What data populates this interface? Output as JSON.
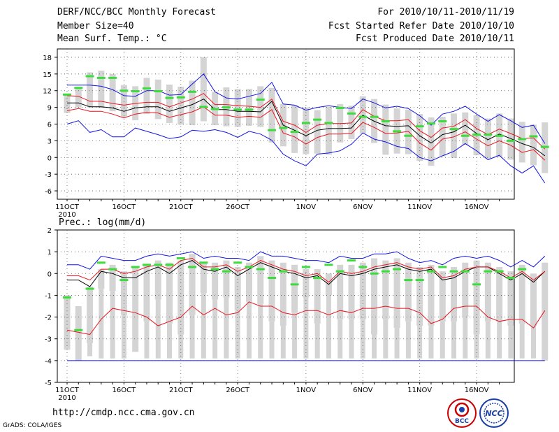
{
  "header": {
    "title": "DERF/NCC/BCC Monthly Forecast",
    "member_size": "Member Size=40",
    "variable": "Mean Surf. Temp.: °C",
    "period": "For 2010/10/11-2010/11/19",
    "fcst_started": "Fcst Started Refer Date 2010/10/10",
    "fcst_produced": "Fcst Produced Date 2010/10/11"
  },
  "footer": {
    "url": "http://cmdp.ncc.cma.gov.cn",
    "credit": "GrADS: COLA/IGES",
    "logo_left_text": "BCC",
    "logo_right_text": "NCC"
  },
  "colors": {
    "ens_mean": "#000000",
    "inner_band": "#e8141e",
    "outer_band": "#1414e6",
    "observed": "#3cdc3c",
    "box": "#d4d4d4"
  },
  "chart_data": [
    {
      "type": "line",
      "title": "Mean Surf. Temp.: °C",
      "x_day_first": 11,
      "x_day_last": 49,
      "ylim": [
        -7.5,
        19.5
      ],
      "yticks": [
        "18",
        "15",
        "12",
        "9",
        "6",
        "3",
        "0",
        "-3",
        "-6"
      ],
      "ytick_values": [
        18,
        15,
        12,
        9,
        6,
        3,
        0,
        -3,
        -6
      ],
      "xticks": [
        "11OCT",
        "16OCT",
        "21OCT",
        "26OCT",
        "1NOV",
        "6NOV",
        "11NOV",
        "16NOV"
      ],
      "xtick_days": [
        11,
        16,
        21,
        26,
        32,
        37,
        42,
        47
      ],
      "xsublabel": "2010",
      "grid": true,
      "series": [
        {
          "name": "ensemble mean",
          "values": [
            9.8,
            9.8,
            9.1,
            9.1,
            8.9,
            8.3,
            8.9,
            9.1,
            9.1,
            8.3,
            8.9,
            9.5,
            10.5,
            8.6,
            8.6,
            8.3,
            8.3,
            8.2,
            10.1,
            5.8,
            4.9,
            3.9,
            4.9,
            5.2,
            5.2,
            5.3,
            7.6,
            6.5,
            5.7,
            5.6,
            5.7,
            3.9,
            2.6,
            4.1,
            4.6,
            5.8,
            4.3,
            3.2,
            4.2,
            3.4,
            2.5,
            1.8,
            0.3
          ]
        },
        {
          "name": "upper",
          "values": [
            11.1,
            11.0,
            10.1,
            10.1,
            9.7,
            9.4,
            9.7,
            9.9,
            9.9,
            9.1,
            9.8,
            10.5,
            11.5,
            9.5,
            9.5,
            9.3,
            9.2,
            9.0,
            10.5,
            6.5,
            5.8,
            4.5,
            5.8,
            6.1,
            6.1,
            6.2,
            8.6,
            7.4,
            6.6,
            6.6,
            6.8,
            4.8,
            3.6,
            5.3,
            5.6,
            6.8,
            5.2,
            4.1,
            5.1,
            4.3,
            3.4,
            3.5,
            1.5
          ]
        },
        {
          "name": "lower",
          "values": [
            8.4,
            8.8,
            8.3,
            8.3,
            7.8,
            7.1,
            7.8,
            8.1,
            8.0,
            7.2,
            7.7,
            8.2,
            9.1,
            7.6,
            7.6,
            7.2,
            7.4,
            7.2,
            8.6,
            4.4,
            3.7,
            2.4,
            3.6,
            4.2,
            4.2,
            4.3,
            6.3,
            5.4,
            4.3,
            4.4,
            4.7,
            2.6,
            1.3,
            3.3,
            3.7,
            4.6,
            3.3,
            2.1,
            3.0,
            2.2,
            0.9,
            1.4,
            -0.5
          ]
        },
        {
          "name": "max",
          "values": [
            13.0,
            13.0,
            13.0,
            12.8,
            12.2,
            11.1,
            11.0,
            12.0,
            12.0,
            11.2,
            11.3,
            13.2,
            15.0,
            11.8,
            10.7,
            10.5,
            11.0,
            11.5,
            13.5,
            9.6,
            9.4,
            8.5,
            9.0,
            9.3,
            9.0,
            8.8,
            10.5,
            9.8,
            8.9,
            9.2,
            8.8,
            7.5,
            5.8,
            7.8,
            8.3,
            9.2,
            7.8,
            6.5,
            7.7,
            6.6,
            5.4,
            5.8,
            2.5
          ]
        },
        {
          "name": "min",
          "values": [
            6.0,
            6.6,
            4.5,
            5.0,
            3.7,
            3.7,
            5.3,
            4.7,
            4.1,
            3.4,
            3.7,
            4.9,
            4.7,
            5.0,
            4.5,
            3.6,
            4.7,
            4.2,
            3.1,
            0.6,
            -0.6,
            -1.5,
            0.6,
            0.8,
            1.2,
            2.4,
            4.4,
            3.3,
            2.8,
            2.0,
            1.6,
            0.0,
            -0.6,
            0.3,
            1.1,
            2.5,
            1.2,
            -0.4,
            0.4,
            -1.5,
            -2.8,
            -1.5,
            -4.6
          ]
        },
        {
          "name": "observed",
          "values": [
            11.3,
            12.5,
            14.6,
            14.3,
            14.3,
            12.0,
            11.9,
            12.4,
            11.9,
            10.7,
            10.8,
            11.8,
            9.1,
            8.7,
            9.0,
            8.6,
            8.6,
            10.4,
            4.9,
            5.3,
            4.6,
            6.2,
            6.8,
            6.2,
            8.9,
            7.9,
            7.3,
            7.3,
            6.5,
            4.7,
            3.9,
            5.6,
            6.1,
            6.5,
            5.1,
            3.9,
            4.1,
            4.1,
            3.9,
            3.0,
            3.3,
            3.8,
            1.9
          ]
        }
      ],
      "box_top": [
        11.5,
        12.3,
        15.3,
        15.6,
        15.0,
        13.0,
        12.8,
        14.3,
        14.0,
        13.1,
        12.7,
        13.8,
        18.0,
        11.8,
        12.6,
        12.3,
        12.3,
        12.8,
        12.5,
        9.6,
        9.4,
        9.0,
        8.5,
        9.1,
        9.6,
        9.3,
        11.0,
        10.5,
        9.5,
        8.8,
        8.6,
        7.8,
        7.2,
        7.3,
        7.9,
        8.1,
        7.6,
        7.0,
        7.9,
        7.0,
        6.4,
        5.9,
        6.3
      ],
      "box_bottom": [
        8.0,
        9.0,
        9.0,
        8.9,
        8.3,
        7.2,
        6.7,
        7.8,
        6.9,
        6.2,
        5.9,
        5.8,
        6.5,
        5.8,
        5.6,
        5.5,
        5.7,
        5.5,
        2.7,
        2.0,
        0.8,
        0.6,
        0.7,
        0.5,
        2.7,
        3.3,
        4.3,
        2.6,
        0.5,
        0.7,
        0.6,
        -0.6,
        -1.5,
        0.2,
        -0.1,
        2.3,
        0.4,
        -0.2,
        0.1,
        -0.4,
        -0.9,
        -1.4,
        -2.8
      ]
    },
    {
      "type": "line",
      "title": "Prec.: log(mm/d)",
      "x_day_first": 11,
      "x_day_last": 49,
      "ylim": [
        -5,
        2
      ],
      "yticks": [
        "2",
        "1",
        "0",
        "-1",
        "-2",
        "-3",
        "-4",
        "-5"
      ],
      "ytick_values": [
        2,
        1,
        0,
        -1,
        -2,
        -3,
        -4,
        -5
      ],
      "xticks": [
        "11OCT",
        "16OCT",
        "21OCT",
        "26OCT",
        "1NOV",
        "6NOV",
        "11NOV",
        "16NOV"
      ],
      "xtick_days": [
        11,
        16,
        21,
        26,
        32,
        37,
        42,
        47
      ],
      "xsublabel": "2010",
      "grid": true,
      "series": [
        {
          "name": "ensemble mean",
          "values": [
            -0.3,
            -0.3,
            -0.6,
            0.1,
            0.0,
            -0.2,
            -0.2,
            0.1,
            0.3,
            0.0,
            0.4,
            0.6,
            0.2,
            0.1,
            0.3,
            -0.1,
            0.2,
            0.5,
            0.3,
            0.1,
            0.0,
            -0.2,
            -0.1,
            -0.5,
            0.0,
            -0.1,
            0.0,
            0.2,
            0.3,
            0.4,
            0.2,
            0.1,
            0.2,
            -0.3,
            -0.2,
            0.1,
            0.3,
            0.3,
            0.0,
            -0.3,
            0.0,
            -0.4,
            0.1
          ]
        },
        {
          "name": "upper",
          "values": [
            -0.1,
            -0.1,
            -0.3,
            0.2,
            0.2,
            0.0,
            0.1,
            0.3,
            0.4,
            0.2,
            0.6,
            0.7,
            0.3,
            0.3,
            0.4,
            0.1,
            0.3,
            0.6,
            0.4,
            0.2,
            0.1,
            -0.1,
            0.0,
            -0.4,
            0.1,
            0.0,
            0.1,
            0.3,
            0.4,
            0.5,
            0.3,
            0.2,
            0.3,
            -0.2,
            -0.1,
            0.2,
            0.3,
            0.3,
            0.1,
            -0.2,
            0.1,
            -0.3,
            0.1
          ]
        },
        {
          "name": "lower",
          "values": [
            -2.6,
            -2.7,
            -2.8,
            -2.1,
            -1.6,
            -1.7,
            -1.8,
            -2.0,
            -2.4,
            -2.2,
            -2.0,
            -1.5,
            -1.9,
            -1.6,
            -1.9,
            -1.8,
            -1.3,
            -1.5,
            -1.5,
            -1.8,
            -1.9,
            -1.7,
            -1.7,
            -1.9,
            -1.7,
            -1.8,
            -1.6,
            -1.6,
            -1.5,
            -1.6,
            -1.6,
            -1.8,
            -2.3,
            -2.1,
            -1.6,
            -1.5,
            -1.5,
            -2.0,
            -2.2,
            -2.1,
            -2.1,
            -2.5,
            -1.7
          ]
        },
        {
          "name": "max",
          "values": [
            0.4,
            0.4,
            0.2,
            0.8,
            0.7,
            0.6,
            0.6,
            0.8,
            0.9,
            0.8,
            0.9,
            1.0,
            0.7,
            0.8,
            0.7,
            0.7,
            0.6,
            1.0,
            0.8,
            0.8,
            0.7,
            0.6,
            0.6,
            0.5,
            0.8,
            0.7,
            0.7,
            0.9,
            0.9,
            1.0,
            0.7,
            0.5,
            0.6,
            0.4,
            0.7,
            0.8,
            0.7,
            0.8,
            0.6,
            0.3,
            0.6,
            0.3,
            0.8
          ]
        },
        {
          "name": "observed",
          "values": [
            -1.1,
            -2.6,
            -0.7,
            0.5,
            0.2,
            -0.3,
            0.3,
            0.4,
            0.4,
            0.4,
            0.7,
            0.3,
            0.5,
            0.2,
            0.1,
            0.5,
            0.3,
            0.2,
            -0.2,
            0.1,
            -0.5,
            0.3,
            -0.2,
            0.4,
            0.1,
            0.6,
            0.3,
            0.0,
            0.1,
            0.2,
            -0.3,
            -0.3,
            0.1,
            0.3,
            0.1,
            0.1,
            -0.5,
            0.1,
            0.1,
            -0.2,
            0.2
          ]
        },
        {
          "name": "floor",
          "values": [
            -4.0,
            -4.0,
            -4.0,
            -4.0,
            -4.0,
            -4.0,
            -4.0,
            -4.0,
            -4.0,
            -4.0,
            -4.0,
            -4.0,
            -4.0,
            -4.0,
            -4.0,
            -4.0,
            -4.0,
            -4.0,
            -4.0,
            -4.0,
            -4.0,
            -4.0,
            -4.0,
            -4.0,
            -4.0,
            -4.0,
            -4.0,
            -4.0,
            -4.0,
            -4.0,
            -4.0,
            -4.0,
            -4.0,
            -4.0,
            -4.0,
            -4.0,
            -4.0,
            -4.0,
            -4.0,
            -4.0,
            -4.0,
            -4.0,
            -4.0
          ]
        }
      ],
      "box_top": [
        -1.0,
        -1.5,
        -0.6,
        0.2,
        0.4,
        0.1,
        0.3,
        0.4,
        0.6,
        0.5,
        0.6,
        0.9,
        0.5,
        0.5,
        0.6,
        0.3,
        0.5,
        0.8,
        0.6,
        0.5,
        0.4,
        0.2,
        0.2,
        0.0,
        0.4,
        0.4,
        0.5,
        0.7,
        0.6,
        0.7,
        0.5,
        0.3,
        0.4,
        0.1,
        0.3,
        0.5,
        0.6,
        0.5,
        0.3,
        0.1,
        0.4,
        0.0,
        0.5
      ],
      "box_bottom": [
        -3.5,
        -4.0,
        -3.2,
        -0.7,
        -0.8,
        -1.9,
        -3.6,
        -2.2,
        -1.2,
        -2.3,
        -2.8,
        -1.9,
        -0.9,
        -1.2,
        -1.1,
        -1.7,
        -1.3,
        -1.4,
        -2.2,
        -2.4,
        -1.8,
        -1.1,
        -2.3,
        -1.0,
        -2.1,
        -2.1,
        -2.1,
        -2.8,
        -2.1,
        -2.5,
        -2.2,
        -2.4,
        -2.4,
        -2.2,
        -2.2,
        -2.0,
        -2.8,
        -2.2,
        -2.2,
        -2.4,
        -2.3,
        -2.4,
        -4.0
      ],
      "box_bottom_deep": [
        null,
        null,
        -3.8,
        -3.9,
        -3.9,
        -3.9,
        null,
        -3.9,
        -3.9,
        -3.9,
        -3.9,
        -3.9,
        -3.9,
        -3.9,
        -3.9,
        -3.9,
        -3.9,
        -3.9,
        -3.9,
        -3.9,
        -3.9,
        -3.9,
        -3.9,
        -3.9,
        -3.9,
        -3.9,
        -3.9,
        -3.9,
        -3.9,
        -3.9,
        -3.9,
        -3.9,
        -3.9,
        -3.9,
        -3.9,
        -3.9,
        -3.9,
        -3.9,
        -3.9,
        -3.9,
        -3.9,
        -3.9,
        null
      ]
    }
  ]
}
